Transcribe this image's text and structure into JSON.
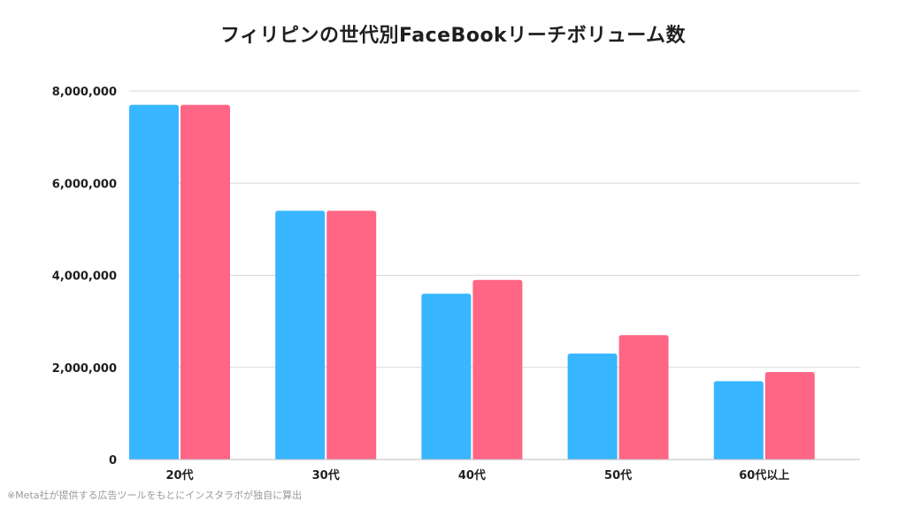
{
  "title": "フィリピンの世代別FaceBookリーチボリューム数",
  "footnote": "※Meta社が提供する広告ツールをもとにインスタラボが独自に算出",
  "chart_data": {
    "type": "bar",
    "categories": [
      "20代",
      "30代",
      "40代",
      "50代",
      "60代以上"
    ],
    "series": [
      {
        "values": [
          7700000,
          5400000,
          3600000,
          2300000,
          1700000
        ],
        "color": "#38b6ff"
      },
      {
        "values": [
          7700000,
          5400000,
          3900000,
          2700000,
          1900000
        ],
        "color": "#ff6685"
      }
    ],
    "yticks": [
      "0",
      "2,000,000",
      "4,000,000",
      "6,000,000",
      "8,000,000"
    ],
    "ylim": [
      0,
      8000000
    ],
    "grid": true,
    "legend": "none"
  }
}
